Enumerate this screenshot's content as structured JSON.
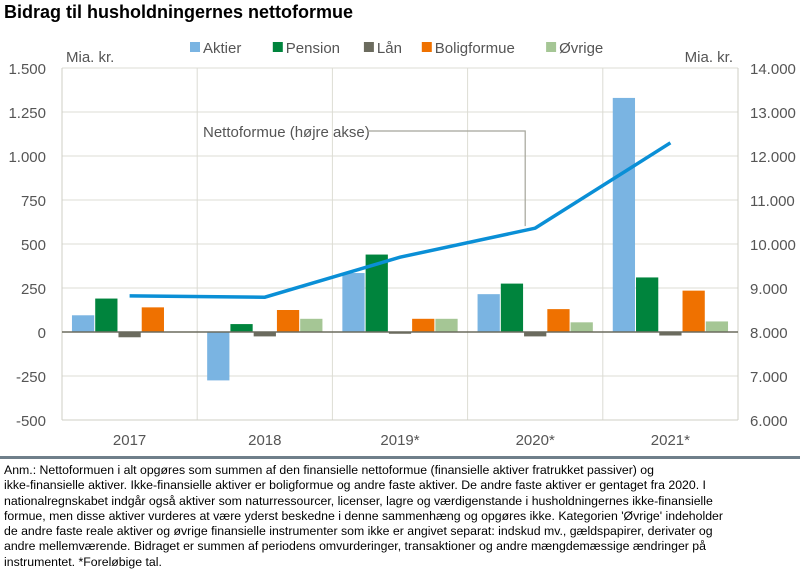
{
  "title": "Bidrag til husholdningernes nettoformue",
  "chart_data": {
    "type": "bar",
    "title": "Bidrag til husholdningernes nettoformue",
    "categories": [
      "2017",
      "2018",
      "2019*",
      "2020*",
      "2021*"
    ],
    "left_axis": {
      "unit": "Mia. kr.",
      "range": [
        -500,
        1500
      ],
      "ticks": [
        -500,
        -250,
        0,
        250,
        500,
        750,
        1000,
        1250,
        1500
      ],
      "tick_labels": [
        "-500",
        "-250",
        "0",
        "250",
        "500",
        "750",
        "1.000",
        "1.250",
        "1.500"
      ]
    },
    "right_axis": {
      "unit": "Mia. kr.",
      "range": [
        6000,
        14000
      ],
      "ticks": [
        6000,
        7000,
        8000,
        9000,
        10000,
        11000,
        12000,
        13000,
        14000
      ],
      "tick_labels": [
        "6.000",
        "7.000",
        "8.000",
        "9.000",
        "10.000",
        "11.000",
        "12.000",
        "13.000",
        "14.000"
      ]
    },
    "grid": true,
    "legend_position": "top",
    "series": [
      {
        "name": "Aktier",
        "type": "bar",
        "axis": "left",
        "color": "#7ab4e2",
        "values": [
          95,
          -275,
          335,
          215,
          1330
        ]
      },
      {
        "name": "Pension",
        "type": "bar",
        "axis": "left",
        "color": "#00843d",
        "values": [
          190,
          45,
          440,
          275,
          310
        ]
      },
      {
        "name": "Lån",
        "type": "bar",
        "axis": "left",
        "color": "#6b6b5e",
        "values": [
          -30,
          -25,
          -10,
          -25,
          -20
        ]
      },
      {
        "name": "Boligformue",
        "type": "bar",
        "axis": "left",
        "color": "#ef7100",
        "values": [
          140,
          125,
          75,
          130,
          235
        ]
      },
      {
        "name": "Øvrige",
        "type": "bar",
        "axis": "left",
        "color": "#a5c695",
        "values": [
          0,
          75,
          75,
          55,
          60
        ]
      },
      {
        "name": "Nettoformue (højre akse)",
        "type": "line",
        "axis": "right",
        "color": "#0a8fd6",
        "values": [
          8820,
          8790,
          9700,
          10360,
          12300
        ]
      }
    ],
    "annotation": "Nettoformue (højre akse)"
  },
  "note_lines": [
    "Anm.: Nettoformuen i alt opgøres som summen af den finansielle nettoformue (finansielle aktiver fratrukket passiver) og",
    "ikke-finansielle aktiver. Ikke-finansielle aktiver er boligformue og andre faste aktiver. De andre faste aktiver er gentaget fra 2020. I",
    "nationalregnskabet indgår også aktiver som naturressourcer, licenser, lagre og værdigenstande i husholdningernes ikke-finansielle",
    "formue, men disse aktiver vurderes at være yderst beskedne i denne sammenhæng og opgøres ikke. Kategorien 'Øvrige' indeholder",
    "de andre faste reale aktiver og øvrige finansielle instrumenter som ikke er angivet separat: indskud mv., gældspapirer, derivater og",
    "andre mellemværende. Bidraget er summen af periodens omvurderinger, transaktioner og andre mængdemæssige ændringer på",
    "instrumentet.  *Foreløbige tal."
  ]
}
